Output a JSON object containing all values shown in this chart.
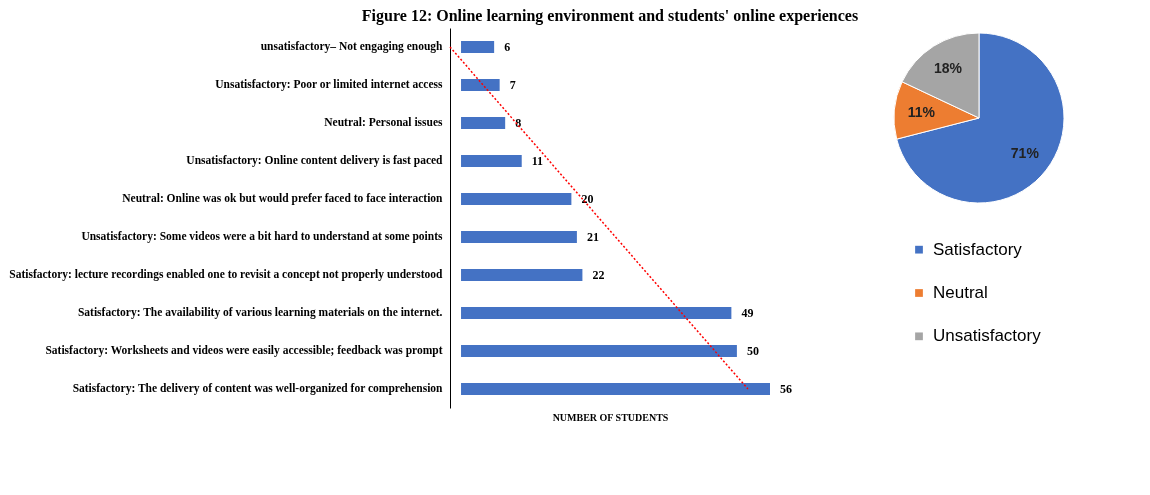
{
  "chart_data": [
    {
      "type": "bar",
      "orientation": "horizontal",
      "title": "Figure 12: Online learning environment and students' online experiences",
      "categories": [
        "unsatisfactory– Not engaging enough",
        "Unsatisfactory: Poor or limited internet access",
        "Neutral: Personal issues",
        "Unsatisfactory: Online content delivery is fast paced",
        "Neutral: Online was ok but would prefer faced to face interaction",
        "Unsatisfactory: Some videos were a bit hard to understand at some points",
        "Satisfactory: lecture recordings enabled one to revisit a concept not properly understood",
        "Satisfactory: The availability of various learning materials on the internet.",
        "Satisfactory: Worksheets and videos were easily accessible; feedback was prompt",
        "Satisfactory: The delivery of content was well-organized for comprehension"
      ],
      "series": [
        {
          "type": "bar",
          "color": "#4472c4",
          "values": [
            6,
            7,
            8,
            11,
            20,
            21,
            22,
            49,
            50,
            56
          ],
          "value_labels": [
            "6",
            "7",
            "8",
            "11",
            "20",
            "21",
            "22",
            "49",
            "50",
            "56"
          ]
        },
        {
          "type": "line",
          "color": "#ff0000",
          "line_style": "dotted",
          "values": [
            -2,
            4,
            10,
            16,
            22,
            28,
            34,
            40,
            46,
            52
          ]
        }
      ],
      "xlabel": "NUMBER OF STUDENTS",
      "tick_labels": "y"
    },
    {
      "type": "pie",
      "categories": [
        "Satisfactory",
        "Neutral",
        "Unsatisfactory"
      ],
      "values": [
        71,
        11,
        18
      ],
      "colors": [
        "#4472c4",
        "#ed7d31",
        "#a5a5a5"
      ],
      "value_labels": [
        "71%",
        "11%",
        "18%"
      ],
      "legend": "bottom"
    }
  ]
}
